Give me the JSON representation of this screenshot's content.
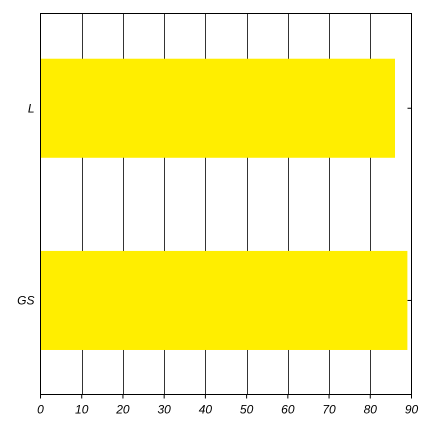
{
  "chart_data": {
    "type": "bar",
    "orientation": "horizontal",
    "title": "",
    "xlabel": "",
    "ylabel": "",
    "categories": [
      "L",
      "GS"
    ],
    "values": [
      86,
      89
    ],
    "xlim": [
      0,
      90
    ],
    "xticks": [
      0,
      10,
      20,
      30,
      40,
      50,
      60,
      70,
      80,
      90
    ],
    "grid": "vertical",
    "legend": "none",
    "bar_color": "#ffee00",
    "grid_color": "#000000",
    "axis_color": "#000000"
  }
}
